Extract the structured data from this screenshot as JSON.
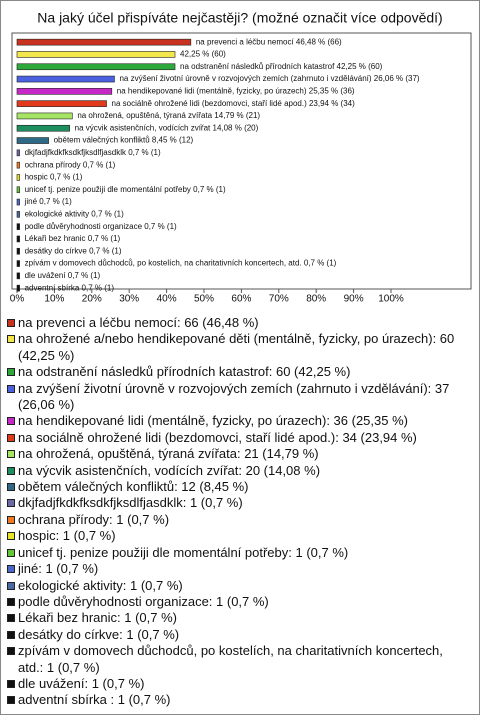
{
  "chart_data": {
    "type": "bar",
    "orientation": "horizontal",
    "title": "Na jaký účel přispíváte nejčastěji? (možné označit více odpovědí)",
    "values": [
      46.48,
      42.25,
      42.25,
      26.06,
      25.35,
      23.94,
      14.79,
      14.08,
      8.45,
      0.7,
      0.7,
      0.7,
      0.7,
      0.7,
      0.7,
      0.7,
      0.7,
      0.7,
      0.7,
      0.7,
      0.7
    ],
    "value_labels": [
      "na prevenci a léčbu nemocí 46,48 % (66)",
      "42,25 % (60)",
      "na odstranění následků přírodních katastrof 42,25 % (60)",
      "na zvýšení životní úrovně v rozvojových zemích (zahrnuto i vzdělávání) 26,06 % (37)",
      "na hendikepované lidi (mentálně, fyzicky, po úrazech) 25,35 % (36)",
      "na sociálně ohrožené lidi (bezdomovci, staří lidé apod.) 23,94 % (34)",
      "na ohrožená, opuštěná, týraná zvířata 14,79 % (21)",
      "na výcvik asistenčních, vodících zvířat 14,08 % (20)",
      "obětem válečných konfliktů 8,45 % (12)",
      "dkjfadjfkdkfksdkfjksdlfjasdklk 0,7 % (1)",
      "ochrana přírody 0,7 % (1)",
      "hospic 0,7 % (1)",
      "unicef tj. penize použiji dle momentální potřeby 0,7 % (1)",
      "jiné 0,7 % (1)",
      "ekologické aktivity 0,7 % (1)",
      "podle důvěryhodnosti organizace 0,7 % (1)",
      "Lékaři bez hranic 0,7 % (1)",
      "desátky do církve 0,7 % (1)",
      "zpívám v domovech důchodců, po kostelích, na charitativních koncertech, atd. 0,7 % (1)",
      "dle uvážení 0,7 % (1)",
      "adventní sbírka 0,7 % (1)"
    ],
    "legend_labels": [
      "na prevenci a léčbu nemocí: 66 (46,48 %)",
      "na ohrožené a/nebo hendikepované děti (mentálně, fyzicky, po úrazech): 60 (42,25 %)",
      "na odstranění následků přírodních katastrof: 60 (42,25 %)",
      "na zvýšení životní úrovně v rozvojových zemích (zahrnuto i vzdělávání): 37 (26,06 %)",
      "na hendikepované lidi (mentálně, fyzicky, po úrazech): 36 (25,35 %)",
      "na sociálně ohrožené lidi (bezdomovci, staří lidé apod.): 34 (23,94 %)",
      "na ohrožená, opuštěná, týraná zvířata: 21 (14,79 %)",
      "na výcvik asistenčních, vodících zvířat: 20 (14,08 %)",
      "obětem válečných konfliktů: 12 (8,45 %)",
      "dkjfadjfkdkfksdkfjksdlfjasdklk: 1 (0,7 %)",
      "ochrana přírody: 1 (0,7 %)",
      "hospic: 1 (0,7 %)",
      "unicef tj. penize použiji dle momentální potřeby: 1 (0,7 %)",
      "jiné: 1 (0,7 %)",
      "ekologické aktivity: 1 (0,7 %)",
      "podle důvěryhodnosti organizace: 1 (0,7 %)",
      "Lékaři bez hranic: 1 (0,7 %)",
      "desátky do církve: 1 (0,7 %)",
      "zpívám v domovech důchodců, po kostelích, na charitativních koncertech, atd.: 1 (0,7 %)",
      "dle uvážení: 1 (0,7 %)",
      "adventní sbírka : 1 (0,7 %)"
    ],
    "colors": [
      "#c8321e",
      "#f2e64a",
      "#2ea83a",
      "#4a62e0",
      "#c628c8",
      "#e03a1a",
      "#a6e466",
      "#1e8e5e",
      "#2e6a86",
      "#6a6aa8",
      "#f07a24",
      "#e8e424",
      "#62c636",
      "#4a66c8",
      "#4a6aa6",
      "#111111",
      "#111111",
      "#111111",
      "#111111",
      "#111111",
      "#111111"
    ],
    "xlim": [
      0,
      100
    ],
    "xticks": [
      {
        "value": 0,
        "label": "0%"
      },
      {
        "value": 10,
        "label": "10%"
      },
      {
        "value": 20,
        "label": "20%"
      },
      {
        "value": 30,
        "label": "30%"
      },
      {
        "value": 40,
        "label": "40%"
      },
      {
        "value": 50,
        "label": "50%"
      },
      {
        "value": 60,
        "label": "60%"
      },
      {
        "value": 70,
        "label": "70%"
      },
      {
        "value": 80,
        "label": "80%"
      },
      {
        "value": 90,
        "label": "90%"
      },
      {
        "value": 100,
        "label": "100%"
      }
    ]
  }
}
